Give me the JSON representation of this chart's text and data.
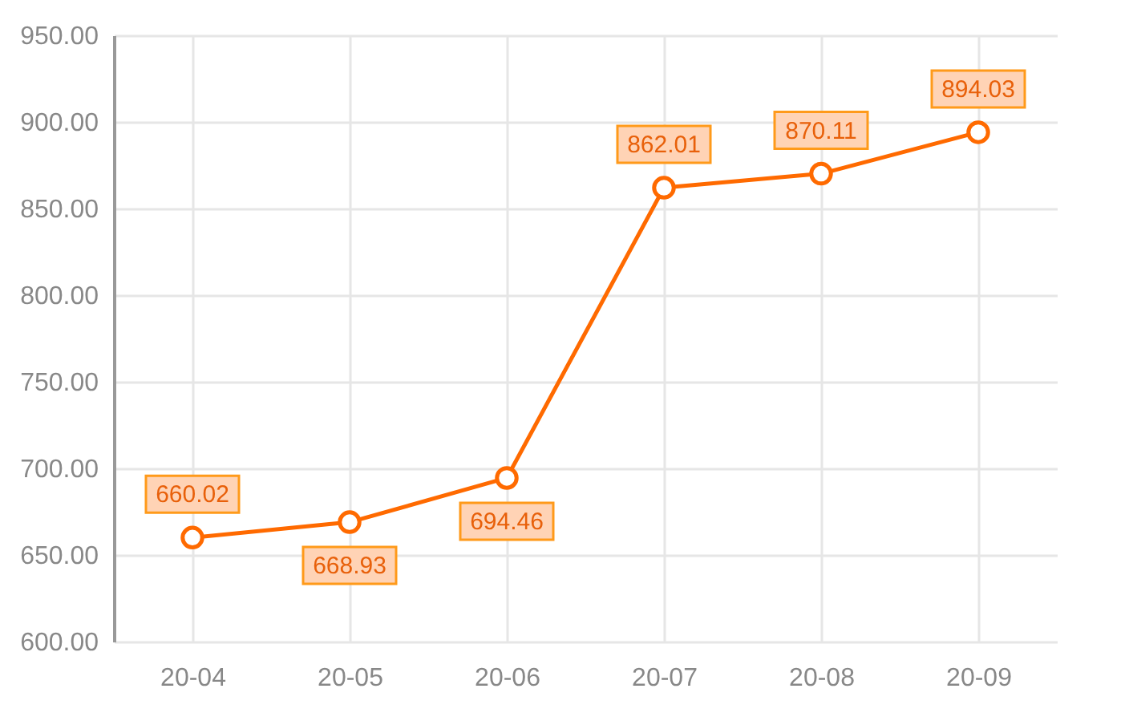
{
  "chart_data": {
    "type": "line",
    "categories": [
      "20-04",
      "20-05",
      "20-06",
      "20-07",
      "20-08",
      "20-09"
    ],
    "series": [
      {
        "color": "#ff6a00",
        "values": [
          660.02,
          668.93,
          694.46,
          862.01,
          870.11,
          894.03
        ]
      }
    ],
    "ylim": [
      600,
      950
    ],
    "yticks": [
      {
        "value": 600,
        "label": "600.00"
      },
      {
        "value": 650,
        "label": "650.00"
      },
      {
        "value": 700,
        "label": "700.00"
      },
      {
        "value": 750,
        "label": "750.00"
      },
      {
        "value": 800,
        "label": "800.00"
      },
      {
        "value": 850,
        "label": "850.00"
      },
      {
        "value": 900,
        "label": "900.00"
      },
      {
        "value": 950,
        "label": "950.00"
      }
    ],
    "grid": true,
    "marker": "circle",
    "data_labels": true
  }
}
